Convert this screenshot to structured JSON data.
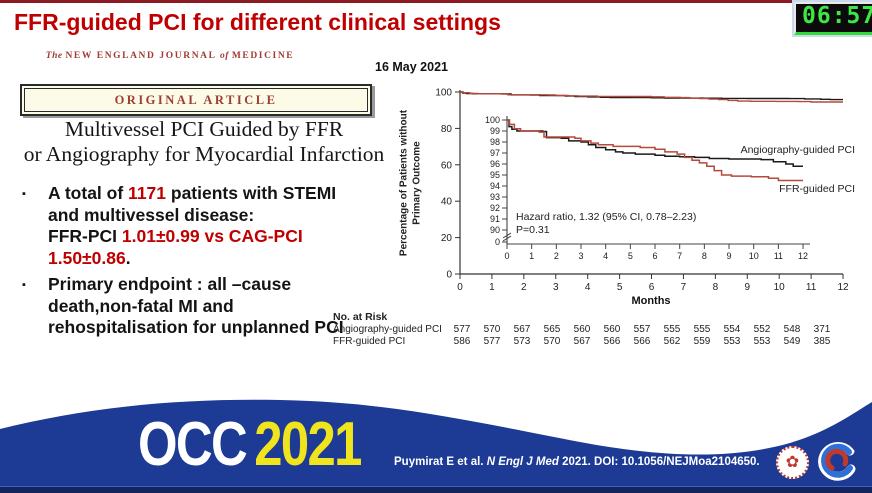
{
  "header": {
    "title": "FFR-guided PCI for different clinical settings",
    "timer": "06:57",
    "date": "16 May 2021"
  },
  "article": {
    "journal_pre": "The ",
    "journal_main": "NEW ENGLAND JOURNAL ",
    "journal_mid": "of ",
    "journal_end": "MEDICINE",
    "badge": "ORIGINAL ARTICLE",
    "title_line1": "Multivessel PCI Guided by FFR",
    "title_line2": "or Angiography for Myocardial Infarction"
  },
  "bullets": {
    "b1_l1_a": "A total of ",
    "b1_l1_num": "1171",
    "b1_l1_b": " patients with STEMI",
    "b1_l2": "and multivessel disease:",
    "b1_l3_a": "FFR-PCI ",
    "b1_l3_b": "1.01±0.99  vs CAG-PCI",
    "b1_l4_a": "1.50±0.86",
    "b1_l4_b": ".",
    "b2_l1": "Primary endpoint : all –cause",
    "b2_l2": "death,non-fatal MI and",
    "b2_l3": "rehospitalisation for unplanned PCI"
  },
  "chart_data": {
    "type": "line",
    "subtype": "kaplan-meier-step",
    "xlabel": "Months",
    "ylabel": "Percentage of Patients without Primary Outcome",
    "outer_axis": {
      "y_ticks": [
        0,
        20,
        40,
        60,
        80,
        100
      ],
      "x_ticks": [
        0,
        1,
        2,
        3,
        4,
        5,
        6,
        7,
        8,
        9,
        10,
        11,
        12
      ],
      "ylim": [
        0,
        100
      ],
      "xlim": [
        0,
        12
      ]
    },
    "inset_axis": {
      "y_ticks": [
        100,
        99,
        98,
        97,
        96,
        95,
        94,
        93,
        92,
        91,
        90
      ],
      "zero_tick": 0,
      "x_ticks": [
        0,
        1,
        2,
        3,
        4,
        5,
        6,
        7,
        8,
        9,
        10,
        11,
        12
      ],
      "ylim": [
        90,
        100
      ],
      "axis_break": true
    },
    "series": [
      {
        "name": "Angiography-guided PCI",
        "color": "#1a1a1a",
        "x": [
          0,
          0.08,
          0.2,
          0.4,
          1.45,
          1.6,
          2.2,
          2.5,
          3.0,
          3.3,
          3.6,
          4.0,
          4.4,
          4.7,
          5.2,
          6.0,
          6.4,
          7.0,
          7.6,
          8.2,
          9.0,
          10.3,
          10.8,
          11.3,
          11.6,
          12
        ],
        "y": [
          100,
          99.4,
          99.15,
          99.0,
          98.95,
          98.4,
          98.35,
          98.1,
          98.0,
          97.75,
          97.5,
          97.3,
          97.1,
          97.0,
          96.9,
          96.8,
          96.7,
          96.65,
          96.6,
          96.5,
          96.45,
          96.4,
          96.2,
          96.0,
          95.8,
          95.8
        ]
      },
      {
        "name": "FFR-guided PCI",
        "color": "#b5493c",
        "x": [
          0,
          0.1,
          0.3,
          0.55,
          1.3,
          1.5,
          2.75,
          3.0,
          3.4,
          3.7,
          4.3,
          5.4,
          6.0,
          6.4,
          6.9,
          7.2,
          7.5,
          7.8,
          8.1,
          8.4,
          8.7,
          9.1,
          9.9,
          10.6,
          11.0,
          12
        ],
        "y": [
          100,
          99.6,
          99.2,
          99.0,
          98.9,
          98.45,
          98.35,
          98.1,
          97.9,
          97.75,
          97.6,
          97.5,
          97.35,
          97.1,
          96.9,
          96.6,
          96.35,
          96.1,
          95.8,
          95.4,
          95.0,
          94.9,
          94.85,
          94.7,
          94.5,
          94.5
        ]
      }
    ],
    "annotations": {
      "hazard": "Hazard ratio, 1.32 (95% CI, 0.78–2.23)",
      "pvalue": "P=0.31"
    },
    "risk_table": {
      "title": "No. at Risk",
      "rows": [
        {
          "label": "Angiography-guided PCI",
          "values": [
            577,
            570,
            567,
            565,
            560,
            560,
            557,
            555,
            555,
            554,
            552,
            548,
            371
          ]
        },
        {
          "label": "FFR-guided PCI",
          "values": [
            586,
            577,
            573,
            570,
            567,
            566,
            566,
            562,
            559,
            553,
            553,
            549,
            385
          ]
        }
      ]
    }
  },
  "banner": {
    "occ": "OCC",
    "year": "2021",
    "bg": "#1d3a94",
    "year_color": "#efe41d",
    "cite_pre": "Puymirat E et al. ",
    "cite_journal": "N Engl J Med",
    "cite_post": " 2021. DOI: 10.1056/NEJMoa2104650."
  }
}
